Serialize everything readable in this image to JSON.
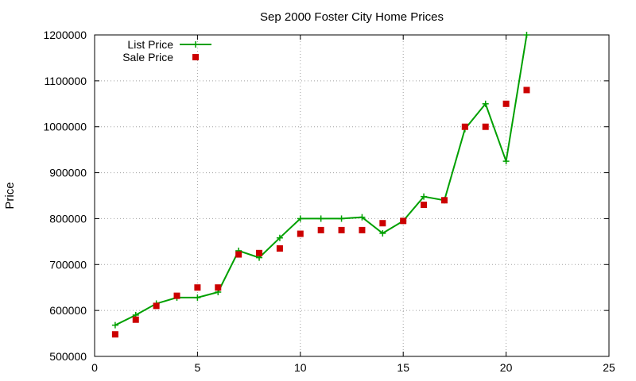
{
  "chart_data": {
    "type": "line",
    "title": "Sep 2000 Foster City Home Prices",
    "xlabel": "",
    "ylabel": "Price",
    "xlim": [
      0,
      25
    ],
    "ylim": [
      500000,
      1200000
    ],
    "x_ticks": [
      0,
      5,
      10,
      15,
      20,
      25
    ],
    "y_ticks": [
      500000,
      600000,
      700000,
      800000,
      900000,
      1000000,
      1100000,
      1200000
    ],
    "grid": true,
    "legend_position": "top-left",
    "series": [
      {
        "name": "List Price",
        "style": "line-with-crosses",
        "color": "#00a000",
        "x": [
          1,
          2,
          3,
          4,
          5,
          6,
          7,
          8,
          9,
          10,
          11,
          12,
          13,
          14,
          15,
          16,
          17,
          18,
          19,
          20,
          21
        ],
        "y": [
          568000,
          590000,
          615000,
          628000,
          628000,
          640000,
          730000,
          715000,
          758000,
          800000,
          800000,
          800000,
          803000,
          768000,
          795000,
          848000,
          840000,
          995000,
          1050000,
          925000,
          1200000
        ]
      },
      {
        "name": "Sale Price",
        "style": "squares",
        "color": "#cc0000",
        "x": [
          1,
          2,
          3,
          4,
          5,
          6,
          7,
          8,
          9,
          10,
          11,
          12,
          13,
          14,
          15,
          16,
          17,
          18,
          19,
          20,
          21
        ],
        "y": [
          548000,
          580000,
          610000,
          632000,
          650000,
          650000,
          722000,
          725000,
          735000,
          767000,
          775000,
          775000,
          775000,
          790000,
          795000,
          830000,
          840000,
          1000000,
          1000000,
          1050000,
          1080000
        ]
      }
    ]
  }
}
